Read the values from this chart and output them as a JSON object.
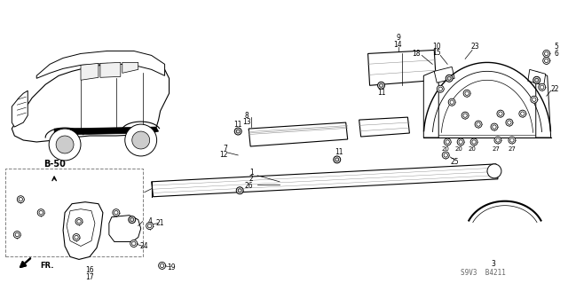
{
  "bg_color": "#ffffff",
  "diagram_ref": "S9V3  B4211",
  "fig_width": 6.4,
  "fig_height": 3.19,
  "dpi": 100
}
